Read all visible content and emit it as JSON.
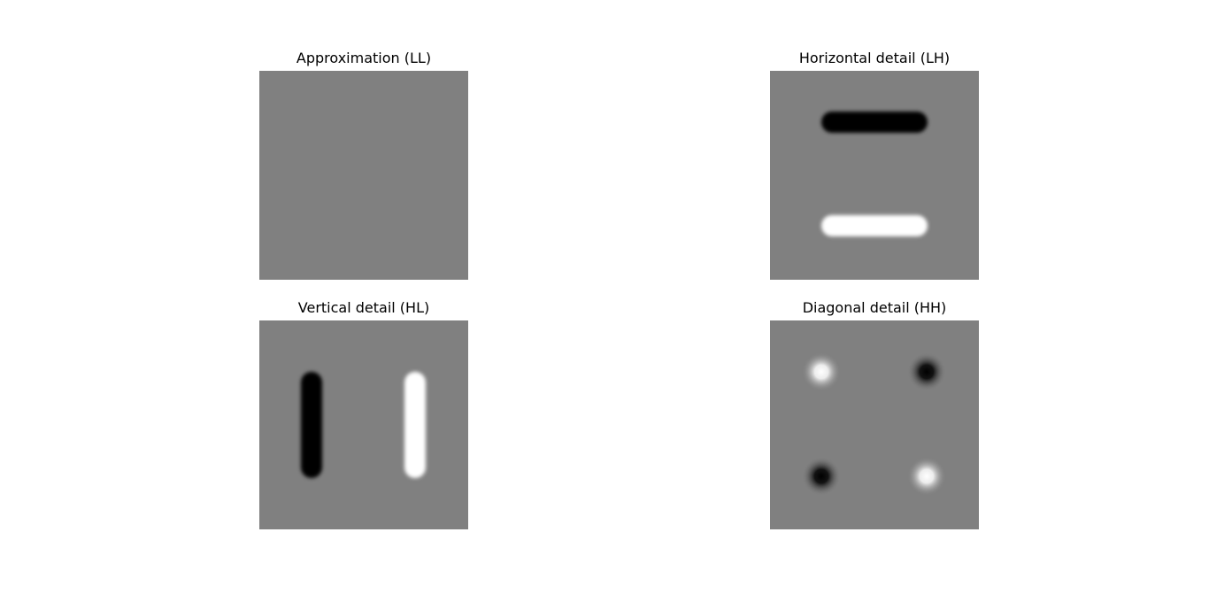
{
  "figure": {
    "background": "#ffffff",
    "colormap": "gray",
    "neutral_gray": "#808080",
    "panels": [
      {
        "id": "ll",
        "title": "Approximation (LL)",
        "content": "uniform gray"
      },
      {
        "id": "lh",
        "title": "Horizontal detail (LH)",
        "content": "dark horizontal bar above, bright horizontal bar below"
      },
      {
        "id": "hl",
        "title": "Vertical detail (HL)",
        "content": "dark vertical bar left, bright vertical bar right"
      },
      {
        "id": "hh",
        "title": "Diagonal detail (HH)",
        "content": "bright blob top-left and bottom-right, dark blob top-right and bottom-left"
      }
    ]
  }
}
